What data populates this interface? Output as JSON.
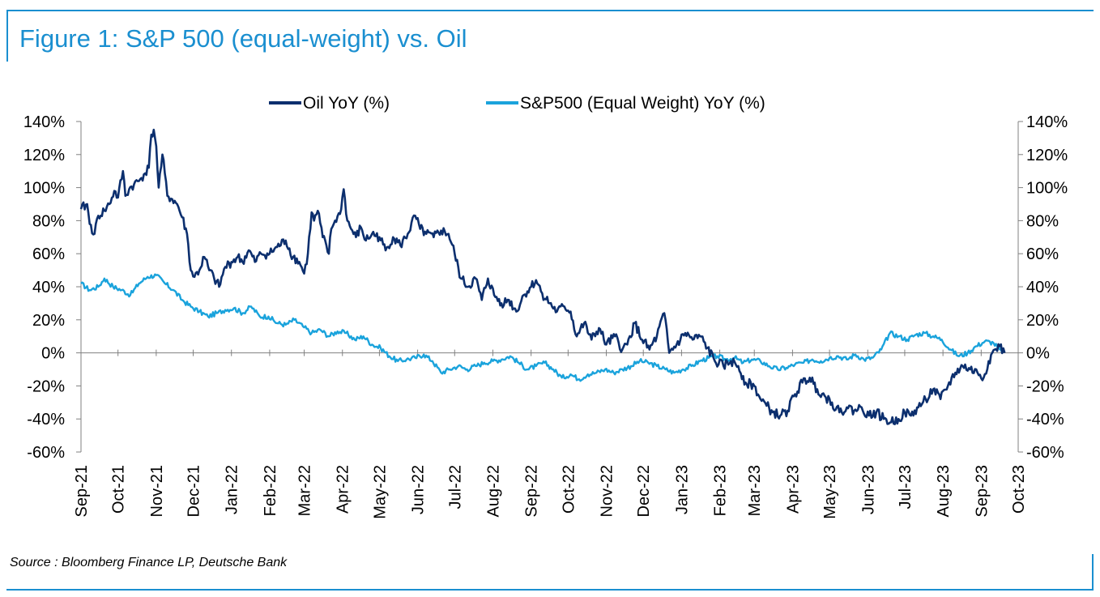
{
  "figure": {
    "title": "Figure 1: S&P 500 (equal-weight) vs. Oil",
    "source": "Source : Bloomberg Finance LP, Deutsche Bank"
  },
  "chart_data": {
    "type": "line",
    "title": "Figure 1: S&P 500 (equal-weight) vs. Oil",
    "xlabel": "",
    "ylabel": "",
    "ylim": [
      -60,
      140
    ],
    "y_ticks": [
      "140%",
      "120%",
      "100%",
      "80%",
      "60%",
      "40%",
      "20%",
      "0%",
      "-20%",
      "-40%",
      "-60%"
    ],
    "y_tick_values": [
      140,
      120,
      100,
      80,
      60,
      40,
      20,
      0,
      -20,
      -40,
      -60
    ],
    "y2_ticks": [
      "140%",
      "120%",
      "100%",
      "80%",
      "60%",
      "40%",
      "20%",
      "0%",
      "-20%",
      "-40%",
      "-60%"
    ],
    "x_ticks": [
      "Sep-21",
      "Oct-21",
      "Nov-21",
      "Dec-21",
      "Jan-22",
      "Feb-22",
      "Mar-22",
      "Apr-22",
      "May-22",
      "Jun-22",
      "Jul-22",
      "Aug-22",
      "Sep-22",
      "Oct-22",
      "Nov-22",
      "Dec-22",
      "Jan-23",
      "Feb-23",
      "Mar-23",
      "Apr-23",
      "May-23",
      "Jun-23",
      "Jul-23",
      "Aug-23",
      "Sep-23",
      "Oct-23"
    ],
    "xlim": [
      "2021-09-01",
      "2023-10-01"
    ],
    "grid": false,
    "legend_position": "top",
    "colors": {
      "oil": "#0c2f6e",
      "spx": "#1aa3dc",
      "axis": "#808080"
    },
    "series": [
      {
        "name": "Oil YoY (%)",
        "key": "oil",
        "points": [
          [
            "2021-09-01",
            87
          ],
          [
            "2021-09-06",
            90
          ],
          [
            "2021-09-08",
            78
          ],
          [
            "2021-09-12",
            72
          ],
          [
            "2021-09-15",
            83
          ],
          [
            "2021-09-20",
            86
          ],
          [
            "2021-09-24",
            90
          ],
          [
            "2021-09-28",
            98
          ],
          [
            "2021-10-01",
            94
          ],
          [
            "2021-10-05",
            110
          ],
          [
            "2021-10-07",
            95
          ],
          [
            "2021-10-10",
            99
          ],
          [
            "2021-10-14",
            102
          ],
          [
            "2021-10-18",
            104
          ],
          [
            "2021-10-22",
            108
          ],
          [
            "2021-10-26",
            112
          ],
          [
            "2021-10-28",
            132
          ],
          [
            "2021-10-30",
            135
          ],
          [
            "2021-11-01",
            125
          ],
          [
            "2021-11-03",
            100
          ],
          [
            "2021-11-06",
            120
          ],
          [
            "2021-11-10",
            95
          ],
          [
            "2021-11-14",
            93
          ],
          [
            "2021-11-18",
            90
          ],
          [
            "2021-11-22",
            82
          ],
          [
            "2021-11-26",
            72
          ],
          [
            "2021-11-29",
            50
          ],
          [
            "2021-12-02",
            46
          ],
          [
            "2021-12-06",
            50
          ],
          [
            "2021-12-10",
            58
          ],
          [
            "2021-12-14",
            50
          ],
          [
            "2021-12-18",
            45
          ],
          [
            "2021-12-22",
            40
          ],
          [
            "2021-12-27",
            52
          ],
          [
            "2022-01-01",
            55
          ],
          [
            "2022-01-06",
            58
          ],
          [
            "2022-01-10",
            55
          ],
          [
            "2022-01-15",
            62
          ],
          [
            "2022-01-20",
            55
          ],
          [
            "2022-01-25",
            60
          ],
          [
            "2022-02-01",
            60
          ],
          [
            "2022-02-07",
            64
          ],
          [
            "2022-02-14",
            68
          ],
          [
            "2022-02-20",
            58
          ],
          [
            "2022-02-25",
            55
          ],
          [
            "2022-03-01",
            48
          ],
          [
            "2022-03-04",
            60
          ],
          [
            "2022-03-07",
            85
          ],
          [
            "2022-03-09",
            80
          ],
          [
            "2022-03-12",
            86
          ],
          [
            "2022-03-16",
            70
          ],
          [
            "2022-03-21",
            60
          ],
          [
            "2022-03-23",
            75
          ],
          [
            "2022-03-26",
            80
          ],
          [
            "2022-03-30",
            84
          ],
          [
            "2022-04-02",
            99
          ],
          [
            "2022-04-05",
            80
          ],
          [
            "2022-04-08",
            75
          ],
          [
            "2022-04-12",
            70
          ],
          [
            "2022-04-16",
            76
          ],
          [
            "2022-04-20",
            68
          ],
          [
            "2022-04-25",
            72
          ],
          [
            "2022-05-01",
            70
          ],
          [
            "2022-05-06",
            62
          ],
          [
            "2022-05-12",
            70
          ],
          [
            "2022-05-18",
            65
          ],
          [
            "2022-05-24",
            72
          ],
          [
            "2022-05-30",
            83
          ],
          [
            "2022-06-03",
            75
          ],
          [
            "2022-06-08",
            72
          ],
          [
            "2022-06-14",
            70
          ],
          [
            "2022-06-20",
            74
          ],
          [
            "2022-06-26",
            72
          ],
          [
            "2022-07-01",
            60
          ],
          [
            "2022-07-06",
            45
          ],
          [
            "2022-07-12",
            40
          ],
          [
            "2022-07-18",
            45
          ],
          [
            "2022-07-23",
            32
          ],
          [
            "2022-07-28",
            45
          ],
          [
            "2022-08-02",
            35
          ],
          [
            "2022-08-08",
            30
          ],
          [
            "2022-08-14",
            32
          ],
          [
            "2022-08-20",
            25
          ],
          [
            "2022-08-26",
            35
          ],
          [
            "2022-09-01",
            40
          ],
          [
            "2022-09-05",
            44
          ],
          [
            "2022-09-10",
            36
          ],
          [
            "2022-09-16",
            30
          ],
          [
            "2022-09-22",
            25
          ],
          [
            "2022-09-28",
            28
          ],
          [
            "2022-10-03",
            25
          ],
          [
            "2022-10-08",
            10
          ],
          [
            "2022-10-14",
            18
          ],
          [
            "2022-10-20",
            8
          ],
          [
            "2022-10-26",
            15
          ],
          [
            "2022-11-01",
            5
          ],
          [
            "2022-11-08",
            10
          ],
          [
            "2022-11-14",
            2
          ],
          [
            "2022-11-18",
            5
          ],
          [
            "2022-11-24",
            18
          ],
          [
            "2022-11-30",
            8
          ],
          [
            "2022-12-06",
            2
          ],
          [
            "2022-12-12",
            10
          ],
          [
            "2022-12-18",
            24
          ],
          [
            "2022-12-22",
            0
          ],
          [
            "2022-12-28",
            5
          ],
          [
            "2023-01-04",
            12
          ],
          [
            "2023-01-10",
            8
          ],
          [
            "2023-01-16",
            10
          ],
          [
            "2023-01-22",
            3
          ],
          [
            "2023-01-28",
            -5
          ],
          [
            "2023-02-04",
            -8
          ],
          [
            "2023-02-10",
            -5
          ],
          [
            "2023-02-16",
            -8
          ],
          [
            "2023-02-22",
            -18
          ],
          [
            "2023-03-01",
            -20
          ],
          [
            "2023-03-06",
            -28
          ],
          [
            "2023-03-11",
            -32
          ],
          [
            "2023-03-16",
            -36
          ],
          [
            "2023-03-22",
            -38
          ],
          [
            "2023-03-28",
            -35
          ],
          [
            "2023-04-03",
            -25
          ],
          [
            "2023-04-09",
            -18
          ],
          [
            "2023-04-15",
            -15
          ],
          [
            "2023-04-21",
            -22
          ],
          [
            "2023-04-27",
            -26
          ],
          [
            "2023-05-03",
            -30
          ],
          [
            "2023-05-09",
            -36
          ],
          [
            "2023-05-15",
            -33
          ],
          [
            "2023-05-21",
            -35
          ],
          [
            "2023-05-27",
            -33
          ],
          [
            "2023-06-02",
            -38
          ],
          [
            "2023-06-08",
            -36
          ],
          [
            "2023-06-14",
            -40
          ],
          [
            "2023-06-20",
            -42
          ],
          [
            "2023-06-26",
            -40
          ],
          [
            "2023-07-01",
            -36
          ],
          [
            "2023-07-06",
            -38
          ],
          [
            "2023-07-12",
            -33
          ],
          [
            "2023-07-18",
            -28
          ],
          [
            "2023-07-24",
            -22
          ],
          [
            "2023-07-30",
            -28
          ],
          [
            "2023-08-05",
            -20
          ],
          [
            "2023-08-11",
            -12
          ],
          [
            "2023-08-17",
            -8
          ],
          [
            "2023-08-23",
            -10
          ],
          [
            "2023-08-29",
            -12
          ],
          [
            "2023-09-03",
            -15
          ],
          [
            "2023-09-07",
            -5
          ],
          [
            "2023-09-12",
            2
          ],
          [
            "2023-09-16",
            4
          ],
          [
            "2023-09-20",
            0
          ]
        ]
      },
      {
        "name": "S&P500 (Equal Weight) YoY (%)",
        "key": "spx",
        "points": [
          [
            "2021-09-01",
            42
          ],
          [
            "2021-09-08",
            38
          ],
          [
            "2021-09-15",
            40
          ],
          [
            "2021-09-20",
            45
          ],
          [
            "2021-09-27",
            40
          ],
          [
            "2021-10-04",
            38
          ],
          [
            "2021-10-11",
            35
          ],
          [
            "2021-10-18",
            42
          ],
          [
            "2021-10-25",
            46
          ],
          [
            "2021-11-01",
            47
          ],
          [
            "2021-11-08",
            42
          ],
          [
            "2021-11-15",
            38
          ],
          [
            "2021-11-22",
            32
          ],
          [
            "2021-11-29",
            28
          ],
          [
            "2021-12-06",
            25
          ],
          [
            "2021-12-13",
            22
          ],
          [
            "2021-12-20",
            24
          ],
          [
            "2021-12-27",
            26
          ],
          [
            "2022-01-03",
            27
          ],
          [
            "2022-01-10",
            24
          ],
          [
            "2022-01-17",
            28
          ],
          [
            "2022-01-24",
            22
          ],
          [
            "2022-01-31",
            22
          ],
          [
            "2022-02-07",
            18
          ],
          [
            "2022-02-14",
            17
          ],
          [
            "2022-02-21",
            20
          ],
          [
            "2022-02-28",
            16
          ],
          [
            "2022-03-07",
            12
          ],
          [
            "2022-03-14",
            14
          ],
          [
            "2022-03-21",
            10
          ],
          [
            "2022-03-28",
            13
          ],
          [
            "2022-04-04",
            12
          ],
          [
            "2022-04-11",
            8
          ],
          [
            "2022-04-18",
            10
          ],
          [
            "2022-04-25",
            5
          ],
          [
            "2022-05-02",
            3
          ],
          [
            "2022-05-09",
            -2
          ],
          [
            "2022-05-16",
            -5
          ],
          [
            "2022-05-23",
            -4
          ],
          [
            "2022-05-30",
            -3
          ],
          [
            "2022-06-06",
            -1
          ],
          [
            "2022-06-13",
            -5
          ],
          [
            "2022-06-20",
            -12
          ],
          [
            "2022-06-27",
            -10
          ],
          [
            "2022-07-04",
            -8
          ],
          [
            "2022-07-11",
            -10
          ],
          [
            "2022-07-18",
            -8
          ],
          [
            "2022-07-25",
            -6
          ],
          [
            "2022-08-01",
            -5
          ],
          [
            "2022-08-08",
            -4
          ],
          [
            "2022-08-15",
            -2
          ],
          [
            "2022-08-22",
            -6
          ],
          [
            "2022-08-29",
            -10
          ],
          [
            "2022-09-05",
            -8
          ],
          [
            "2022-09-12",
            -6
          ],
          [
            "2022-09-19",
            -10
          ],
          [
            "2022-09-26",
            -15
          ],
          [
            "2022-10-03",
            -13
          ],
          [
            "2022-10-10",
            -16
          ],
          [
            "2022-10-17",
            -13
          ],
          [
            "2022-10-24",
            -12
          ],
          [
            "2022-10-31",
            -10
          ],
          [
            "2022-11-07",
            -12
          ],
          [
            "2022-11-14",
            -10
          ],
          [
            "2022-11-21",
            -8
          ],
          [
            "2022-11-28",
            -5
          ],
          [
            "2022-12-05",
            -6
          ],
          [
            "2022-12-12",
            -8
          ],
          [
            "2022-12-19",
            -10
          ],
          [
            "2022-12-26",
            -12
          ],
          [
            "2023-01-02",
            -10
          ],
          [
            "2023-01-09",
            -8
          ],
          [
            "2023-01-16",
            -5
          ],
          [
            "2023-01-23",
            -3
          ],
          [
            "2023-01-30",
            -2
          ],
          [
            "2023-02-06",
            -4
          ],
          [
            "2023-02-13",
            -3
          ],
          [
            "2023-02-20",
            -6
          ],
          [
            "2023-02-27",
            -4
          ],
          [
            "2023-03-06",
            -5
          ],
          [
            "2023-03-13",
            -8
          ],
          [
            "2023-03-20",
            -10
          ],
          [
            "2023-03-27",
            -9
          ],
          [
            "2023-04-03",
            -7
          ],
          [
            "2023-04-10",
            -6
          ],
          [
            "2023-04-17",
            -4
          ],
          [
            "2023-04-24",
            -5
          ],
          [
            "2023-05-01",
            -3
          ],
          [
            "2023-05-08",
            -2
          ],
          [
            "2023-05-15",
            -4
          ],
          [
            "2023-05-22",
            -1
          ],
          [
            "2023-05-29",
            -4
          ],
          [
            "2023-06-05",
            -3
          ],
          [
            "2023-06-12",
            2
          ],
          [
            "2023-06-19",
            12
          ],
          [
            "2023-06-26",
            10
          ],
          [
            "2023-07-03",
            8
          ],
          [
            "2023-07-10",
            11
          ],
          [
            "2023-07-17",
            12
          ],
          [
            "2023-07-24",
            10
          ],
          [
            "2023-07-31",
            8
          ],
          [
            "2023-08-07",
            2
          ],
          [
            "2023-08-14",
            -2
          ],
          [
            "2023-08-21",
            0
          ],
          [
            "2023-08-28",
            4
          ],
          [
            "2023-09-04",
            7
          ],
          [
            "2023-09-11",
            6
          ],
          [
            "2023-09-18",
            0
          ]
        ]
      }
    ]
  }
}
